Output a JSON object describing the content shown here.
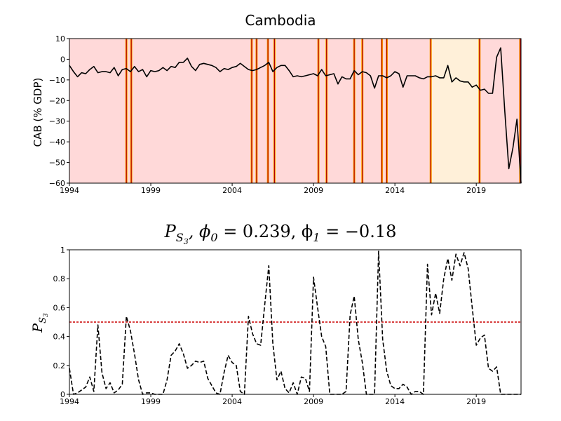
{
  "chart_data": [
    {
      "type": "line",
      "title": "Cambodia",
      "ylabel": "CAB (% GDP)",
      "xlabel": "",
      "xlim": [
        1994,
        2021.75
      ],
      "ylim": [
        -60,
        10
      ],
      "yticks": [
        10,
        0,
        -10,
        -20,
        -30,
        -40,
        -50,
        -60
      ],
      "yticklabels": [
        "10",
        "0",
        "−10",
        "−20",
        "−30",
        "−40",
        "−50",
        "−60"
      ],
      "xticks": [
        1994,
        1999,
        2004,
        2009,
        2014,
        2019
      ],
      "xticklabels": [
        "1994",
        "1999",
        "2004",
        "2009",
        "2014",
        "2019"
      ],
      "background_color": "#ffd9d9",
      "regimes": [
        {
          "start": 2016.2,
          "end": 2019.2,
          "color": "#fff0d9"
        }
      ],
      "regime_lines": [
        1997.5,
        1997.8,
        2005.2,
        2005.5,
        2006.2,
        2006.6,
        2009.3,
        2009.8,
        2011.5,
        2012.0,
        2013.2,
        2013.5,
        2016.2,
        2019.2,
        2021.7
      ],
      "line_color_dark": "#b30000",
      "line_color_light": "#ffa500",
      "series": [
        {
          "x": [
            1994.0,
            1994.25,
            1994.5,
            1994.75,
            1995.0,
            1995.25,
            1995.5,
            1995.75,
            1996.0,
            1996.25,
            1996.5,
            1996.75,
            1997.0,
            1997.25,
            1997.5,
            1997.75,
            1998.0,
            1998.25,
            1998.5,
            1998.75,
            1999.0,
            1999.25,
            1999.5,
            1999.75,
            2000.0,
            2000.25,
            2000.5,
            2000.75,
            2001.0,
            2001.25,
            2001.5,
            2001.75,
            2002.0,
            2002.25,
            2002.5,
            2002.75,
            2003.0,
            2003.25,
            2003.5,
            2003.75,
            2004.0,
            2004.25,
            2004.5,
            2004.75,
            2005.0,
            2005.25,
            2005.5,
            2005.75,
            2006.0,
            2006.25,
            2006.5,
            2006.75,
            2007.0,
            2007.25,
            2007.5,
            2007.75,
            2008.0,
            2008.25,
            2008.5,
            2008.75,
            2009.0,
            2009.25,
            2009.5,
            2009.75,
            2010.0,
            2010.25,
            2010.5,
            2010.75,
            2011.0,
            2011.25,
            2011.5,
            2011.75,
            2012.0,
            2012.25,
            2012.5,
            2012.75,
            2013.0,
            2013.25,
            2013.5,
            2013.75,
            2014.0,
            2014.25,
            2014.5,
            2014.75,
            2015.0,
            2015.25,
            2015.5,
            2015.75,
            2016.0,
            2016.25,
            2016.5,
            2016.75,
            2017.0,
            2017.25,
            2017.5,
            2017.75,
            2018.0,
            2018.25,
            2018.5,
            2018.75,
            2019.0,
            2019.25,
            2019.5,
            2019.75,
            2020.0,
            2020.25,
            2020.5,
            2020.75,
            2021.0,
            2021.25,
            2021.5,
            2021.75
          ],
          "y": [
            -3,
            -6,
            -8.5,
            -6.5,
            -7,
            -5,
            -3.5,
            -6.5,
            -6,
            -6,
            -6.5,
            -4,
            -8,
            -5,
            -4.5,
            -6,
            -3.5,
            -6,
            -5,
            -8.5,
            -5.5,
            -6,
            -5.5,
            -4,
            -5.5,
            -3.5,
            -4,
            -1.5,
            -1.5,
            0.5,
            -3.5,
            -5.5,
            -2.5,
            -2,
            -2.5,
            -3,
            -4,
            -6,
            -4.5,
            -5,
            -4,
            -3.5,
            -2,
            -3.5,
            -5,
            -5.5,
            -5,
            -4,
            -3,
            -1.5,
            -6,
            -4,
            -3,
            -3,
            -5.5,
            -8.5,
            -8,
            -8.5,
            -8,
            -7.5,
            -7,
            -8,
            -5,
            -8,
            -7.5,
            -7,
            -12,
            -8.5,
            -9.5,
            -9.5,
            -5.5,
            -7.5,
            -6,
            -6.5,
            -8,
            -14,
            -8,
            -8,
            -9,
            -8,
            -6,
            -7,
            -13.5,
            -8,
            -8,
            -8,
            -9,
            -9.5,
            -8.5,
            -8.5,
            -8,
            -9,
            -9,
            -3,
            -11,
            -9,
            -10.5,
            -11,
            -11,
            -13.5,
            -12.5,
            -15,
            -14.5,
            -16.5,
            -16.5,
            1,
            5.5,
            -25,
            -53,
            -43,
            -29,
            -60
          ]
        }
      ]
    },
    {
      "type": "line",
      "title": "P_{S_3}, ϕ_0 = 0.239, ϕ_1 = −0.18",
      "title_parts": {
        "p": "P",
        "sub": "S",
        "subsub": "3",
        "rest": ", ϕ",
        "phi0_sub": "0",
        "phi0_val": " = 0.239, ϕ",
        "phi1_sub": "1",
        "phi1_val": " = −0.18"
      },
      "ylabel": "P_{S_3}",
      "ylabel_parts": {
        "p": "P",
        "sub": "S",
        "subsub": "3"
      },
      "xlabel": "",
      "xlim": [
        1994,
        2021.75
      ],
      "ylim": [
        0,
        1
      ],
      "yticks": [
        0,
        0.2,
        0.4,
        0.6,
        0.8,
        1
      ],
      "yticklabels": [
        "0",
        "0.2",
        "0.4",
        "0.6",
        "0.8",
        "1"
      ],
      "xticks": [
        1994,
        1999,
        2004,
        2009,
        2014,
        2019
      ],
      "xticklabels": [
        "1994",
        "1999",
        "2004",
        "2009",
        "2014",
        "2019"
      ],
      "threshold": 0.5,
      "threshold_color": "#cc0000",
      "series": [
        {
          "style": "dashed",
          "x": [
            1994.0,
            1994.25,
            1994.5,
            1994.75,
            1995.0,
            1995.25,
            1995.5,
            1995.75,
            1996.0,
            1996.25,
            1996.5,
            1996.75,
            1997.0,
            1997.25,
            1997.5,
            1997.75,
            1998.0,
            1998.25,
            1998.5,
            1998.75,
            1999.0,
            1999.25,
            1999.5,
            1999.75,
            2000.0,
            2000.25,
            2000.5,
            2000.75,
            2001.0,
            2001.25,
            2001.5,
            2001.75,
            2002.0,
            2002.25,
            2002.5,
            2002.75,
            2003.0,
            2003.25,
            2003.5,
            2003.75,
            2004.0,
            2004.25,
            2004.5,
            2004.75,
            2005.0,
            2005.25,
            2005.5,
            2005.75,
            2006.0,
            2006.25,
            2006.5,
            2006.75,
            2007.0,
            2007.25,
            2007.5,
            2007.75,
            2008.0,
            2008.25,
            2008.5,
            2008.75,
            2009.0,
            2009.25,
            2009.5,
            2009.75,
            2010.0,
            2010.25,
            2010.5,
            2010.75,
            2011.0,
            2011.25,
            2011.5,
            2011.75,
            2012.0,
            2012.25,
            2012.5,
            2012.75,
            2013.0,
            2013.25,
            2013.5,
            2013.75,
            2014.0,
            2014.25,
            2014.5,
            2014.75,
            2015.0,
            2015.25,
            2015.5,
            2015.75,
            2016.0,
            2016.25,
            2016.5,
            2016.75,
            2017.0,
            2017.25,
            2017.5,
            2017.75,
            2018.0,
            2018.25,
            2018.5,
            2018.75,
            2019.0,
            2019.25,
            2019.5,
            2019.75,
            2020.0,
            2020.25,
            2020.5,
            2020.75,
            2021.0,
            2021.25,
            2021.5,
            2021.75
          ],
          "y": [
            0.18,
            0.0,
            0.01,
            0.03,
            0.05,
            0.12,
            0.02,
            0.48,
            0.15,
            0.04,
            0.08,
            0.01,
            0.03,
            0.07,
            0.54,
            0.44,
            0.28,
            0.1,
            0.0,
            0.01,
            0.01,
            0.0,
            0.0,
            0.0,
            0.1,
            0.27,
            0.3,
            0.35,
            0.28,
            0.18,
            0.2,
            0.23,
            0.22,
            0.23,
            0.11,
            0.06,
            0.01,
            0.0,
            0.15,
            0.27,
            0.22,
            0.2,
            0.02,
            0.0,
            0.54,
            0.42,
            0.35,
            0.34,
            0.62,
            0.89,
            0.35,
            0.1,
            0.16,
            0.04,
            0.01,
            0.08,
            0.0,
            0.12,
            0.11,
            0.02,
            0.81,
            0.6,
            0.4,
            0.33,
            0.0,
            0.0,
            0.0,
            0.0,
            0.02,
            0.55,
            0.68,
            0.38,
            0.22,
            0.0,
            0.0,
            0.0,
            0.99,
            0.38,
            0.16,
            0.06,
            0.04,
            0.04,
            0.07,
            0.05,
            0.0,
            0.02,
            0.02,
            0.0,
            0.9,
            0.55,
            0.7,
            0.56,
            0.8,
            0.94,
            0.79,
            0.97,
            0.89,
            0.98,
            0.87,
            0.6,
            0.34,
            0.39,
            0.41,
            0.18,
            0.16,
            0.19,
            0.0,
            0.0,
            0.0,
            0.0,
            0.0,
            0.0
          ]
        }
      ]
    }
  ]
}
